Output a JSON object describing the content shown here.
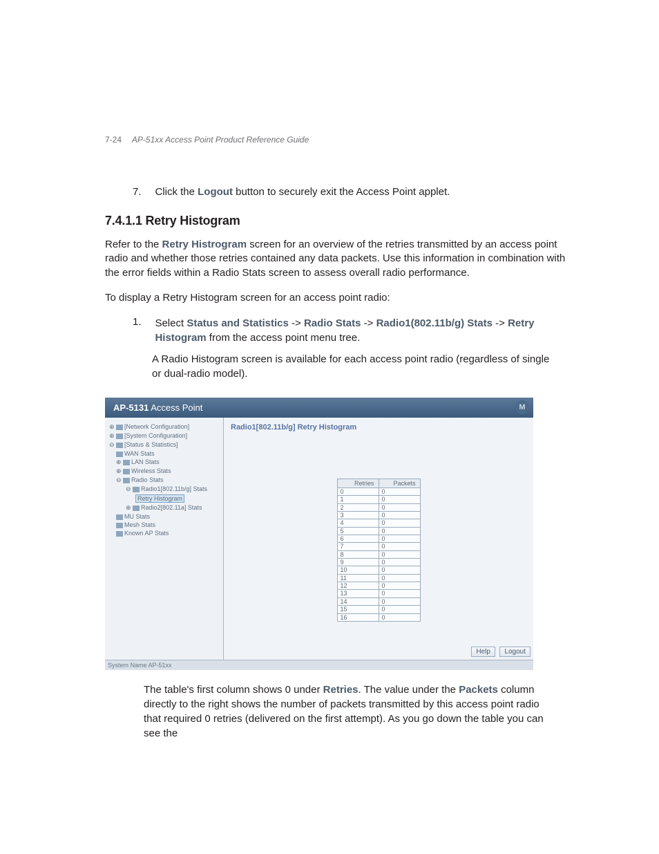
{
  "header": {
    "pagenum": "7-24",
    "guide": "AP-51xx Access Point Product Reference Guide"
  },
  "step7": {
    "num": "7.",
    "pre": "Click the ",
    "bold": "Logout",
    "post": " button to securely exit the Access Point applet."
  },
  "section": {
    "num": "7.4.1.1",
    "title": "Retry Histogram"
  },
  "para1": {
    "pre": "Refer to the ",
    "bold": "Retry Histrogram",
    "post": " screen for an overview of the retries transmitted by an access point radio and whether those retries contained any data packets. Use this information in combination with the error fields within a Radio Stats screen to assess overall radio performance."
  },
  "para2": "To display a Retry Histogram screen for an access point radio:",
  "step1": {
    "num": "1.",
    "pre": "Select ",
    "b1": "Status and Statistics",
    "s1": " -> ",
    "b2": "Radio Stats",
    "s2": " -> ",
    "b3": "Radio1(802.11b/g) Stats",
    "s3": " -> ",
    "b4": "Retry Histogram",
    "post": " from the access point menu tree.",
    "after": "A Radio Histogram screen is available for each access point radio (regardless of single or dual-radio model)."
  },
  "figure": {
    "titleBold": "AP-5131",
    "titleRest": " Access Point",
    "logo": "M",
    "mainTitle": "Radio1[802.11b/g] Retry Histogram",
    "tree": {
      "n0": "[Network Configuration]",
      "n1": "[System Configuration]",
      "n2": "[Status & Statistics]",
      "n3": "WAN Stats",
      "n4": "LAN Stats",
      "n5": "Wireless Stats",
      "n6": "Radio Stats",
      "n7": "Radio1[802.11b/g] Stats",
      "n8": "Retry Histogram",
      "n9": "Radio2[802.11a] Stats",
      "n10": "MU Stats",
      "n11": "Mesh Stats",
      "n12": "Known AP Stats"
    },
    "table": {
      "h1": "Retries",
      "h2": "Packets",
      "rows": [
        [
          "0",
          "0"
        ],
        [
          "1",
          "0"
        ],
        [
          "2",
          "0"
        ],
        [
          "3",
          "0"
        ],
        [
          "4",
          "0"
        ],
        [
          "5",
          "0"
        ],
        [
          "6",
          "0"
        ],
        [
          "7",
          "0"
        ],
        [
          "8",
          "0"
        ],
        [
          "9",
          "0"
        ],
        [
          "10",
          "0"
        ],
        [
          "11",
          "0"
        ],
        [
          "12",
          "0"
        ],
        [
          "13",
          "0"
        ],
        [
          "14",
          "0"
        ],
        [
          "15",
          "0"
        ],
        [
          "16",
          "0"
        ]
      ]
    },
    "btnHelp": "Help",
    "btnLogout": "Logout",
    "sysname": "System Name AP-51xx"
  },
  "followup": {
    "t1": "The table's first column shows 0 under ",
    "b1": "Retries",
    "t2": ". The value under the ",
    "b2": "Packets",
    "t3": " column directly to the right shows the number of packets transmitted by this access point radio that required 0 retries (delivered on the first attempt). As you go down the table you can see the"
  }
}
